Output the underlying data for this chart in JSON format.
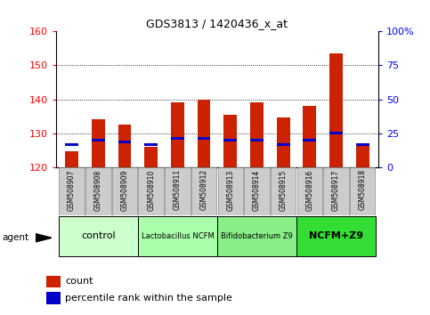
{
  "title": "GDS3813 / 1420436_x_at",
  "samples": [
    "GSM508907",
    "GSM508908",
    "GSM508909",
    "GSM508910",
    "GSM508911",
    "GSM508912",
    "GSM508913",
    "GSM508914",
    "GSM508915",
    "GSM508916",
    "GSM508917",
    "GSM508918"
  ],
  "count_values": [
    124.5,
    134.0,
    132.5,
    126.0,
    139.0,
    140.0,
    135.5,
    139.0,
    134.5,
    138.0,
    153.5,
    126.5
  ],
  "percentile_values": [
    126.5,
    128.0,
    127.5,
    126.5,
    128.5,
    128.5,
    128.0,
    128.0,
    126.5,
    128.0,
    130.0,
    126.5
  ],
  "ylim_left": [
    120,
    160
  ],
  "ylim_right": [
    0,
    100
  ],
  "yticks_left": [
    120,
    130,
    140,
    150,
    160
  ],
  "yticks_right": [
    0,
    25,
    50,
    75,
    100
  ],
  "yticklabels_right": [
    "0",
    "25",
    "50",
    "75",
    "100%"
  ],
  "bar_color": "#cc2200",
  "percentile_color": "#0000cc",
  "bar_bottom": 120,
  "pct_bar_height": 0.8,
  "groups": [
    {
      "label": "control",
      "start": 0,
      "end": 3,
      "color": "#ccffcc",
      "fontsize": 8,
      "fontweight": "normal"
    },
    {
      "label": "Lactobacillus NCFM",
      "start": 3,
      "end": 6,
      "color": "#aaffaa",
      "fontsize": 6,
      "fontweight": "normal"
    },
    {
      "label": "Bifidobacterium Z9",
      "start": 6,
      "end": 9,
      "color": "#88ee88",
      "fontsize": 6,
      "fontweight": "normal"
    },
    {
      "label": "NCFM+Z9",
      "start": 9,
      "end": 12,
      "color": "#33dd33",
      "fontsize": 8,
      "fontweight": "bold"
    }
  ],
  "legend_count": "count",
  "legend_percentile": "percentile rank within the sample",
  "xticklabel_bg": "#cccccc",
  "bar_width": 0.5
}
